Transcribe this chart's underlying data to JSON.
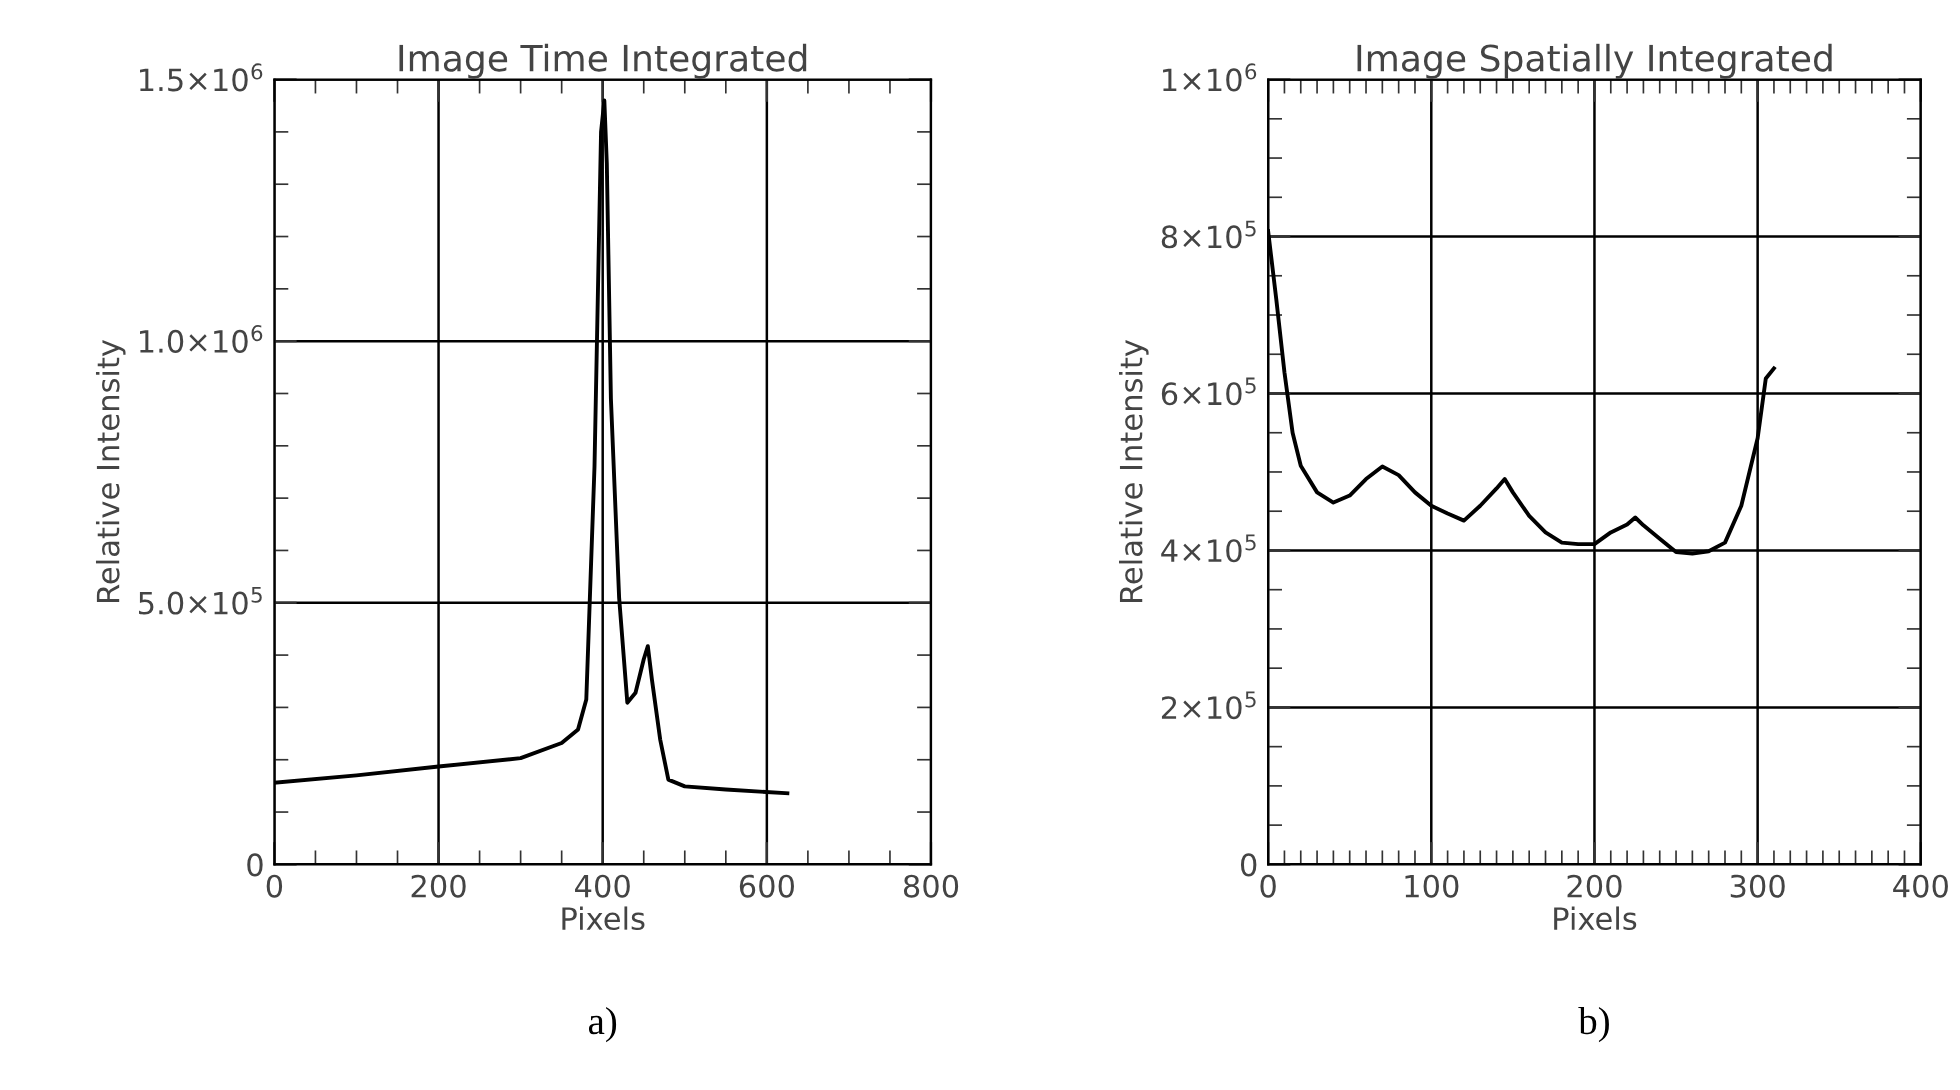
{
  "chart_data": [
    {
      "type": "line",
      "title": "Image Time Integrated",
      "xlabel": "Pixels",
      "ylabel": "Relative Intensity",
      "annotations": [
        "a)"
      ],
      "x": [
        0,
        100,
        200,
        300,
        350,
        370,
        380,
        390,
        398,
        402,
        405,
        410,
        420,
        430,
        440,
        450,
        455,
        460,
        470,
        480,
        500,
        550,
        625
      ],
      "series": [
        {
          "color": "#000000",
          "values": [
            156000,
            170000,
            187000,
            203000,
            232000,
            258000,
            315000,
            760000,
            1400000,
            1460000,
            1340000,
            890000,
            510000,
            309000,
            328000,
            392000,
            417000,
            353000,
            239000,
            162000,
            149000,
            143000,
            136000
          ]
        }
      ],
      "xlim": [
        0,
        800
      ],
      "xticks": [
        0,
        200,
        400,
        600,
        800
      ],
      "ylim": [
        0,
        1500000
      ],
      "yticks": [
        {
          "value": 0,
          "label": "0"
        },
        {
          "value": 500000,
          "label": "5.0×10$^{5}$"
        },
        {
          "value": 1000000,
          "label": "1.0×10$^{6}$"
        },
        {
          "value": 1500000,
          "label": "1.5×10$^{6}$"
        }
      ],
      "grid": true,
      "legend": false,
      "line_style": "solid",
      "marker": "none"
    },
    {
      "type": "line",
      "title": "Image Spatially Integrated",
      "xlabel": "Pixels",
      "ylabel": "Relative Intensity",
      "annotations": [
        "b)"
      ],
      "x": [
        0,
        5,
        10,
        15,
        20,
        30,
        40,
        50,
        60,
        70,
        80,
        90,
        100,
        110,
        120,
        130,
        140,
        145,
        150,
        160,
        170,
        180,
        190,
        200,
        210,
        220,
        225,
        230,
        240,
        250,
        260,
        270,
        280,
        290,
        300,
        305,
        310
      ],
      "series": [
        {
          "color": "#000000",
          "values": [
            807000,
            720000,
            627000,
            550000,
            508000,
            474000,
            461000,
            470000,
            491000,
            507000,
            496000,
            474000,
            457000,
            447000,
            438000,
            457000,
            479000,
            491000,
            474000,
            444000,
            423000,
            410000,
            408000,
            408000,
            423000,
            433000,
            442000,
            432000,
            415000,
            398000,
            396000,
            399000,
            410000,
            457000,
            543000,
            619000,
            632000
          ]
        }
      ],
      "xlim": [
        0,
        400
      ],
      "xticks": [
        0,
        100,
        200,
        300,
        400
      ],
      "ylim": [
        0,
        1000000
      ],
      "yticks": [
        {
          "value": 0,
          "label": "0"
        },
        {
          "value": 200000,
          "label": "2×10$^{5}$"
        },
        {
          "value": 400000,
          "label": "4×10$^{5}$"
        },
        {
          "value": 600000,
          "label": "6×10$^{5}$"
        },
        {
          "value": 800000,
          "label": "8×10$^{5}$"
        },
        {
          "value": 1000000,
          "label": "1×10$^{6}$"
        }
      ],
      "grid": true,
      "legend": false,
      "line_style": "solid",
      "marker": "none"
    }
  ]
}
